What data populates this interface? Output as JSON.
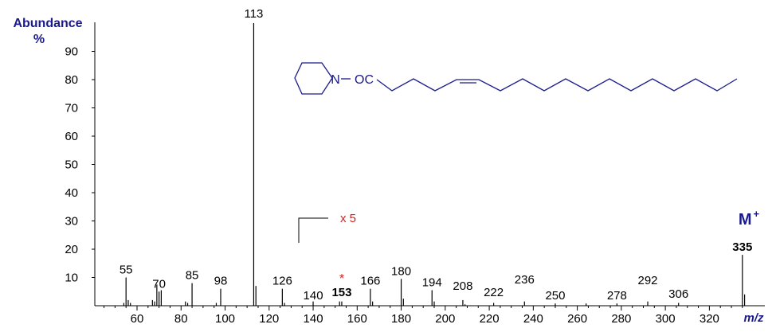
{
  "chart_data": {
    "type": "bar",
    "ylabel": "Abundance",
    "ylabel_unit": "%",
    "xlabel": "m/z",
    "xlim": [
      42,
      337
    ],
    "ylim": [
      0,
      100
    ],
    "x_ticks": [
      60,
      80,
      100,
      120,
      140,
      160,
      180,
      200,
      220,
      240,
      260,
      280,
      300,
      320
    ],
    "y_ticks": [
      10,
      20,
      30,
      40,
      50,
      60,
      70,
      80,
      90
    ],
    "bars": [
      {
        "x": 54,
        "y": 1
      },
      {
        "x": 55,
        "y": 10
      },
      {
        "x": 56,
        "y": 2
      },
      {
        "x": 57,
        "y": 1
      },
      {
        "x": 67,
        "y": 2
      },
      {
        "x": 68,
        "y": 1.5
      },
      {
        "x": 69,
        "y": 7.5
      },
      {
        "x": 70,
        "y": 5
      },
      {
        "x": 71,
        "y": 5.5
      },
      {
        "x": 82,
        "y": 1.5
      },
      {
        "x": 83,
        "y": 1
      },
      {
        "x": 85,
        "y": 8
      },
      {
        "x": 96,
        "y": 1
      },
      {
        "x": 98,
        "y": 6
      },
      {
        "x": 113,
        "y": 100
      },
      {
        "x": 114,
        "y": 7
      },
      {
        "x": 126,
        "y": 6
      },
      {
        "x": 127,
        "y": 1
      },
      {
        "x": 140,
        "y": 1.5
      },
      {
        "x": 152,
        "y": 1.5
      },
      {
        "x": 153,
        "y": 1.5
      },
      {
        "x": 166,
        "y": 6
      },
      {
        "x": 167,
        "y": 1.5
      },
      {
        "x": 180,
        "y": 9.5
      },
      {
        "x": 181,
        "y": 2.5
      },
      {
        "x": 194,
        "y": 5.5
      },
      {
        "x": 195,
        "y": 1.5
      },
      {
        "x": 208,
        "y": 2
      },
      {
        "x": 209,
        "y": 0.5
      },
      {
        "x": 222,
        "y": 1
      },
      {
        "x": 236,
        "y": 1.5
      },
      {
        "x": 250,
        "y": 0.8
      },
      {
        "x": 264,
        "y": 0.8
      },
      {
        "x": 278,
        "y": 0.8
      },
      {
        "x": 292,
        "y": 1.5
      },
      {
        "x": 306,
        "y": 1
      },
      {
        "x": 335,
        "y": 18
      },
      {
        "x": 336,
        "y": 4
      }
    ],
    "peak_labels": [
      {
        "x": 55,
        "text": "55"
      },
      {
        "x": 70,
        "text": "70"
      },
      {
        "x": 85,
        "text": "85"
      },
      {
        "x": 98,
        "text": "98"
      },
      {
        "x": 113,
        "text": "113"
      },
      {
        "x": 126,
        "text": "126"
      },
      {
        "x": 140,
        "text": "140"
      },
      {
        "x": 153,
        "text": "153"
      },
      {
        "x": 166,
        "text": "166"
      },
      {
        "x": 180,
        "text": "180"
      },
      {
        "x": 194,
        "text": "194"
      },
      {
        "x": 208,
        "text": "208"
      },
      {
        "x": 222,
        "text": "222"
      },
      {
        "x": 236,
        "text": "236"
      },
      {
        "x": 250,
        "text": "250"
      },
      {
        "x": 278,
        "text": "278"
      },
      {
        "x": 292,
        "text": "292"
      },
      {
        "x": 306,
        "text": "306"
      },
      {
        "x": 335,
        "text": "335"
      }
    ],
    "annotations": {
      "scale_label": "x 5",
      "asterisk": "*",
      "molecular_ion": "M",
      "molecular_ion_sup": "+",
      "structure_n": "N",
      "structure_ester": "OC"
    },
    "colors": {
      "axis": "#000000",
      "bars": "#000000",
      "labels_blue": "#1a1a8c",
      "highlight_blue": "#1e7ec8",
      "scale_red": "#d62020",
      "structure": "#1a1a8c"
    }
  }
}
